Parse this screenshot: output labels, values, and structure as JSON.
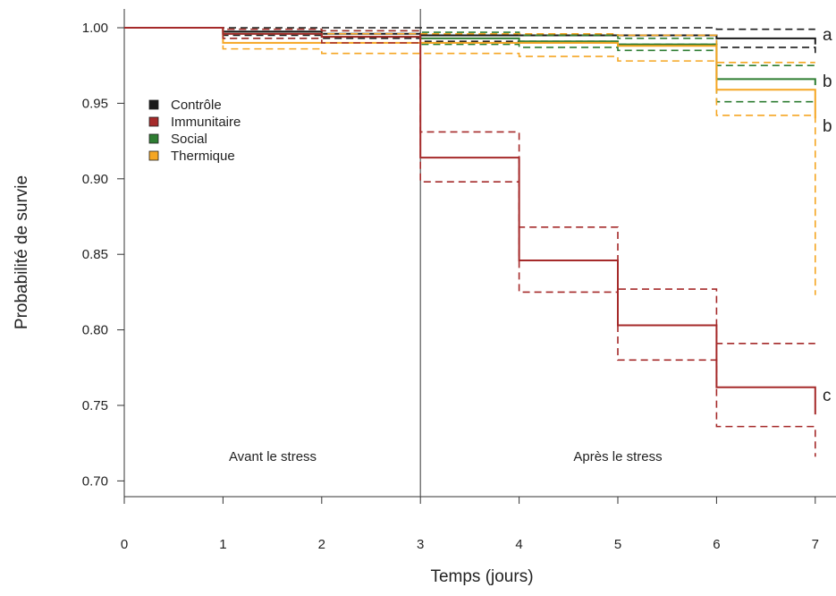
{
  "chart_data": {
    "type": "line",
    "xlabel": "Temps (jours)",
    "ylabel": "Probabilité de survie",
    "xlim": [
      0,
      7
    ],
    "ylim": [
      0.69,
      1.01
    ],
    "x_ticks": [
      "0",
      "1",
      "2",
      "3",
      "4",
      "5",
      "6",
      "7"
    ],
    "y_ticks": [
      "0.70",
      "0.75",
      "0.80",
      "0.85",
      "0.90",
      "0.95",
      "1.00"
    ],
    "stress_day": 3,
    "grid": false,
    "legend_position": "upper-left",
    "annotations": {
      "before": "Avant le stress",
      "after": "Après le stress"
    },
    "series": [
      {
        "name": "Contrôle",
        "color": "#1a1a1a",
        "group_letter": "a",
        "x": [
          0,
          1,
          2,
          3,
          4,
          5,
          6,
          7
        ],
        "survival": [
          1.0,
          0.9975,
          0.996,
          0.995,
          0.995,
          0.995,
          0.993,
          0.989
        ],
        "upper": [
          1.0,
          1.0,
          1.0,
          1.0,
          1.0,
          1.0,
          0.999,
          0.999
        ],
        "lower": [
          1.0,
          0.995,
          0.993,
          0.991,
          0.991,
          0.989,
          0.987,
          0.981
        ]
      },
      {
        "name": "Immunitaire",
        "color": "#a52a2a",
        "group_letter": "c",
        "x": [
          0,
          1,
          2,
          3,
          4,
          5,
          6,
          7
        ],
        "survival": [
          1.0,
          0.996,
          0.994,
          0.914,
          0.846,
          0.803,
          0.762,
          0.744
        ],
        "upper": [
          1.0,
          0.999,
          0.998,
          0.931,
          0.868,
          0.827,
          0.791,
          0.791
        ],
        "lower": [
          1.0,
          0.993,
          0.99,
          0.898,
          0.825,
          0.78,
          0.736,
          0.716
        ]
      },
      {
        "name": "Social",
        "color": "#2e7d32",
        "group_letter": "b",
        "x": [
          0,
          1,
          2,
          3,
          4,
          5,
          6,
          7
        ],
        "survival": [
          1.0,
          0.996,
          0.994,
          0.993,
          0.991,
          0.989,
          0.966,
          0.962
        ],
        "upper": [
          1.0,
          0.999,
          0.998,
          0.997,
          0.995,
          0.993,
          0.975,
          0.975
        ],
        "lower": [
          1.0,
          0.993,
          0.99,
          0.989,
          0.987,
          0.985,
          0.951,
          0.95
        ]
      },
      {
        "name": "Thermique",
        "color": "#f5a623",
        "group_letter": "b",
        "x": [
          0,
          1,
          2,
          3,
          4,
          5,
          6,
          7
        ],
        "survival": [
          1.0,
          0.99,
          0.99,
          0.99,
          0.99,
          0.988,
          0.959,
          0.94
        ],
        "upper": [
          1.0,
          0.996,
          0.996,
          0.996,
          0.996,
          0.995,
          0.977,
          0.977
        ],
        "lower": [
          1.0,
          0.986,
          0.983,
          0.983,
          0.981,
          0.978,
          0.942,
          0.823
        ]
      }
    ]
  }
}
